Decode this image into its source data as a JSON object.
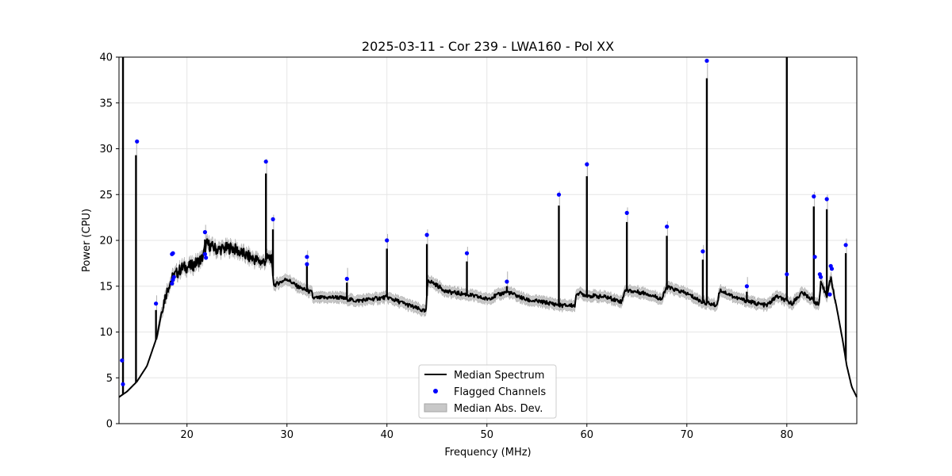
{
  "chart_data": {
    "type": "line",
    "title": "2025-03-11 - Cor 239 - LWA160 - Pol XX",
    "xlabel": "Frequency (MHz)",
    "ylabel": "Power (CPU)",
    "xlim": [
      13.2,
      87.0
    ],
    "ylim": [
      0,
      40
    ],
    "xticks": [
      20,
      30,
      40,
      50,
      60,
      70,
      80
    ],
    "yticks": [
      0,
      5,
      10,
      15,
      20,
      25,
      30,
      35,
      40
    ],
    "grid": true,
    "legend_position": "bottom-center",
    "legend": [
      {
        "label": "Median Spectrum",
        "kind": "line",
        "color": "#000000"
      },
      {
        "label": "Flagged Channels",
        "kind": "marker",
        "color": "#0000ff"
      },
      {
        "label": "Median Abs. Dev.",
        "kind": "band",
        "color": "#c8c8c8"
      }
    ],
    "series": [
      {
        "name": "Median Spectrum",
        "baseline": [
          [
            13.2,
            2.9
          ],
          [
            14.0,
            3.5
          ],
          [
            15.0,
            4.6
          ],
          [
            16.0,
            6.3
          ],
          [
            17.0,
            9.5
          ],
          [
            17.6,
            13.0
          ],
          [
            18.2,
            15.2
          ],
          [
            18.6,
            16.0
          ],
          [
            19.5,
            17.0
          ],
          [
            20.5,
            17.2
          ],
          [
            21.5,
            18.0
          ],
          [
            22.0,
            19.6
          ],
          [
            23.0,
            19.0
          ],
          [
            24.5,
            19.2
          ],
          [
            26.0,
            18.3
          ],
          [
            27.5,
            17.6
          ],
          [
            28.4,
            18.2
          ],
          [
            28.7,
            15.1
          ],
          [
            30.0,
            15.8
          ],
          [
            31.0,
            15.0
          ],
          [
            32.0,
            14.5
          ],
          [
            32.5,
            14.3
          ],
          [
            32.6,
            13.7
          ],
          [
            35.0,
            13.8
          ],
          [
            37.0,
            13.4
          ],
          [
            40.0,
            13.8
          ],
          [
            42.0,
            13.0
          ],
          [
            43.9,
            12.2
          ],
          [
            44.1,
            15.7
          ],
          [
            46.0,
            14.4
          ],
          [
            48.0,
            14.1
          ],
          [
            50.0,
            13.6
          ],
          [
            52.0,
            14.4
          ],
          [
            54.0,
            13.5
          ],
          [
            56.0,
            13.2
          ],
          [
            57.5,
            12.9
          ],
          [
            58.8,
            12.9
          ],
          [
            59.0,
            14.3
          ],
          [
            60.0,
            14.0
          ],
          [
            62.0,
            13.8
          ],
          [
            63.5,
            13.3
          ],
          [
            63.8,
            14.6
          ],
          [
            66.0,
            14.2
          ],
          [
            67.5,
            13.6
          ],
          [
            68.0,
            14.9
          ],
          [
            70.0,
            14.2
          ],
          [
            71.5,
            13.3
          ],
          [
            73.0,
            12.9
          ],
          [
            73.3,
            14.6
          ],
          [
            75.0,
            13.7
          ],
          [
            77.0,
            13.1
          ],
          [
            78.0,
            12.9
          ],
          [
            79.0,
            13.9
          ],
          [
            80.5,
            13.1
          ],
          [
            81.5,
            14.3
          ],
          [
            82.5,
            13.6
          ],
          [
            83.2,
            12.9
          ],
          [
            83.4,
            15.3
          ],
          [
            84.0,
            14.0
          ],
          [
            84.4,
            15.9
          ],
          [
            85.0,
            12.6
          ],
          [
            85.6,
            9.0
          ],
          [
            86.0,
            6.3
          ],
          [
            86.5,
            4.0
          ],
          [
            87.0,
            2.9
          ]
        ],
        "spikes": [
          [
            13.6,
            40
          ],
          [
            14.9,
            29.3
          ],
          [
            16.9,
            12.4
          ],
          [
            21.8,
            20.1
          ],
          [
            27.9,
            27.3
          ],
          [
            28.6,
            21.2
          ],
          [
            32.0,
            17.3
          ],
          [
            36.0,
            15.4
          ],
          [
            40.0,
            19.1
          ],
          [
            44.0,
            19.6
          ],
          [
            48.0,
            17.7
          ],
          [
            52.0,
            15.0
          ],
          [
            57.2,
            23.8
          ],
          [
            60.0,
            27.0
          ],
          [
            64.0,
            22.0
          ],
          [
            68.0,
            20.5
          ],
          [
            71.6,
            17.9
          ],
          [
            72.0,
            37.7
          ],
          [
            76.0,
            14.4
          ],
          [
            80.0,
            40
          ],
          [
            82.7,
            23.7
          ],
          [
            84.0,
            23.4
          ],
          [
            85.9,
            18.6
          ]
        ]
      }
    ],
    "mad_band_width": 0.55,
    "mad_band_start": 17.0,
    "mad_band_end": 84.8,
    "flagged_channels": [
      [
        13.5,
        6.9
      ],
      [
        13.6,
        4.3
      ],
      [
        15.0,
        30.8
      ],
      [
        16.9,
        13.1
      ],
      [
        18.5,
        18.5
      ],
      [
        18.6,
        18.6
      ],
      [
        18.5,
        15.3
      ],
      [
        18.6,
        15.7
      ],
      [
        18.7,
        16.0
      ],
      [
        21.8,
        20.9
      ],
      [
        21.8,
        18.5
      ],
      [
        21.9,
        18.1
      ],
      [
        27.9,
        28.6
      ],
      [
        28.6,
        22.3
      ],
      [
        32.0,
        18.2
      ],
      [
        32.0,
        17.4
      ],
      [
        36.0,
        15.8
      ],
      [
        40.0,
        20.0
      ],
      [
        44.0,
        20.6
      ],
      [
        48.0,
        18.6
      ],
      [
        52.0,
        15.5
      ],
      [
        57.2,
        25.0
      ],
      [
        60.0,
        28.3
      ],
      [
        64.0,
        23.0
      ],
      [
        68.0,
        21.5
      ],
      [
        71.6,
        18.8
      ],
      [
        72.0,
        39.6
      ],
      [
        76.0,
        15.0
      ],
      [
        80.0,
        16.3
      ],
      [
        82.7,
        24.8
      ],
      [
        82.8,
        18.2
      ],
      [
        83.3,
        16.3
      ],
      [
        83.4,
        16.0
      ],
      [
        84.0,
        24.5
      ],
      [
        84.3,
        14.1
      ],
      [
        84.4,
        17.2
      ],
      [
        84.5,
        16.9
      ],
      [
        85.9,
        19.5
      ]
    ]
  }
}
